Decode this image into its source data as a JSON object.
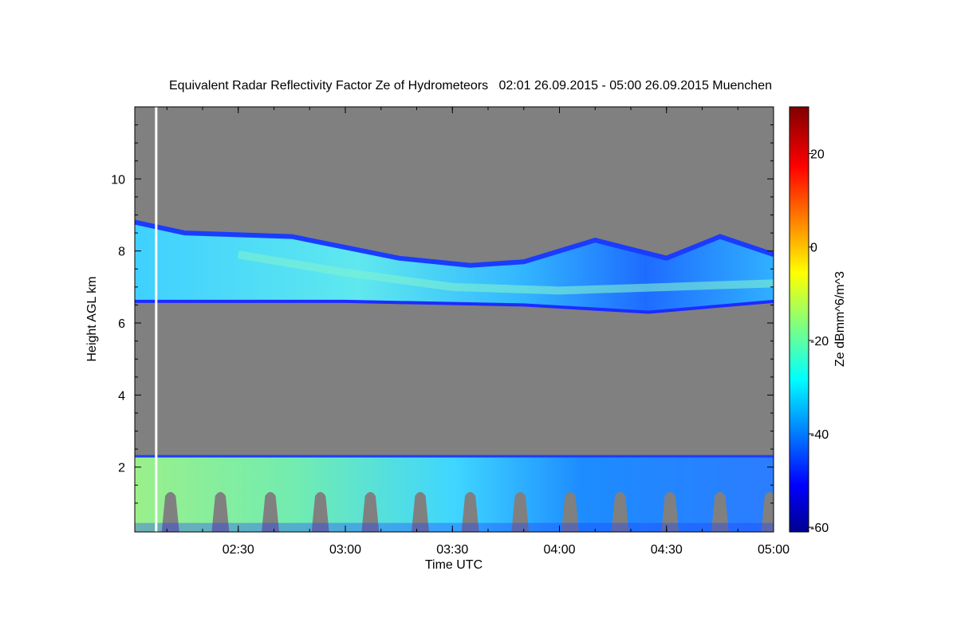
{
  "chart_data": {
    "type": "heatmap",
    "title": "Equivalent Radar Reflectivity Factor Ze of Hydrometeors   02:01 26.09.2015 - 05:00 26.09.2015 Muenchen",
    "xlabel": "Time UTC",
    "ylabel": "Height AGL km",
    "x_ticks": [
      "02:30",
      "03:00",
      "03:30",
      "04:00",
      "04:30",
      "05:00"
    ],
    "x_range": [
      "02:01",
      "05:00"
    ],
    "y_ticks": [
      2,
      4,
      6,
      8,
      10
    ],
    "ylim": [
      0.2,
      12
    ],
    "colorbar": {
      "label": "Ze dBmm^6/m^3",
      "range": [
        -61,
        30
      ],
      "ticks": [
        20,
        0,
        -20,
        -40,
        -60
      ],
      "tick_labels": [
        "20",
        "0",
        "-20",
        "-40",
        "-60"
      ],
      "colormap": "jet"
    },
    "background_color": "#808080",
    "data_gap_time": "02:07",
    "regions": [
      {
        "name": "upper cloud layer",
        "time_start": "02:01",
        "time_end": "05:00",
        "base_km": 6.5,
        "top_km": 8.8,
        "ze_range_dbz": [
          -45,
          -20
        ],
        "top_profile": [
          {
            "t": "02:01",
            "top_km": 8.8
          },
          {
            "t": "02:15",
            "top_km": 8.5
          },
          {
            "t": "02:45",
            "top_km": 8.4
          },
          {
            "t": "03:15",
            "top_km": 7.8
          },
          {
            "t": "03:35",
            "top_km": 7.6
          },
          {
            "t": "03:50",
            "top_km": 7.7
          },
          {
            "t": "04:10",
            "top_km": 8.3
          },
          {
            "t": "04:30",
            "top_km": 7.8
          },
          {
            "t": "04:45",
            "top_km": 8.4
          },
          {
            "t": "05:00",
            "top_km": 7.9
          }
        ],
        "base_profile": [
          {
            "t": "02:01",
            "base_km": 6.6
          },
          {
            "t": "03:00",
            "base_km": 6.6
          },
          {
            "t": "03:50",
            "base_km": 6.5
          },
          {
            "t": "04:25",
            "base_km": 6.3
          },
          {
            "t": "05:00",
            "base_km": 6.6
          }
        ]
      },
      {
        "name": "lower layer with precipitation streaks",
        "time_start": "02:01",
        "time_end": "05:00",
        "base_km": 0.2,
        "top_km": 2.3,
        "ze_range_dbz": [
          -50,
          -15
        ]
      }
    ]
  }
}
